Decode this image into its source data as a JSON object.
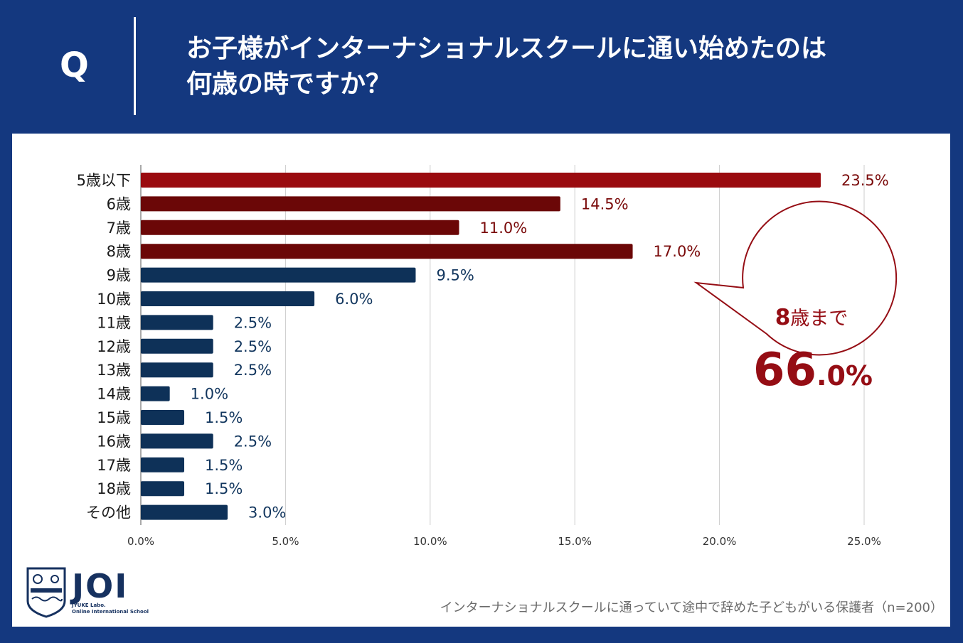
{
  "header": {
    "q_label": "Q",
    "title_line1": "お子様がインターナショナルスクールに通い始めたのは",
    "title_line2": "何歳の時ですか？"
  },
  "colors": {
    "background": "#14387f",
    "bar_red_top": "#9a0b0f",
    "bar_red": "#6b0707",
    "bar_navy": "#0e3158",
    "value_red": "#7a0a0a",
    "value_navy": "#12365e",
    "callout": "#950d14"
  },
  "chart_data": {
    "type": "bar",
    "orientation": "horizontal",
    "categories": [
      "5歳以下",
      "6歳",
      "7歳",
      "8歳",
      "9歳",
      "10歳",
      "11歳",
      "12歳",
      "13歳",
      "14歳",
      "15歳",
      "16歳",
      "17歳",
      "18歳",
      "その他"
    ],
    "values": [
      23.5,
      14.5,
      11.0,
      17.0,
      9.5,
      6.0,
      2.5,
      2.5,
      2.5,
      1.0,
      1.5,
      2.5,
      1.5,
      1.5,
      3.0
    ],
    "value_labels": [
      "23.5%",
      "14.5%",
      "11.0%",
      "17.0%",
      "9.5%",
      "6.0%",
      "2.5%",
      "2.5%",
      "2.5%",
      "1.0%",
      "1.5%",
      "2.5%",
      "1.5%",
      "1.5%",
      "3.0%"
    ],
    "color_groups": [
      "red_top",
      "red",
      "red",
      "red",
      "navy",
      "navy",
      "navy",
      "navy",
      "navy",
      "navy",
      "navy",
      "navy",
      "navy",
      "navy",
      "navy"
    ],
    "xlim": [
      0,
      25
    ],
    "x_ticks": [
      0,
      5,
      10,
      15,
      20,
      25
    ],
    "x_tick_labels": [
      "0.0%",
      "5.0%",
      "10.0%",
      "15.0%",
      "20.0%",
      "25.0%"
    ],
    "grid": true,
    "title": "",
    "xlabel": "",
    "ylabel": ""
  },
  "callout": {
    "prefix_num": "8",
    "prefix_text": "歳まで",
    "big_num": "66",
    "big_suffix": ".0%"
  },
  "logo": {
    "name": "JOI",
    "sub_line1": "JYUKE Labo.",
    "sub_line2": "Online International School"
  },
  "footnote": "インターナショナルスクールに通っていて途中で辞めた子どもがいる保護者（n=200）"
}
